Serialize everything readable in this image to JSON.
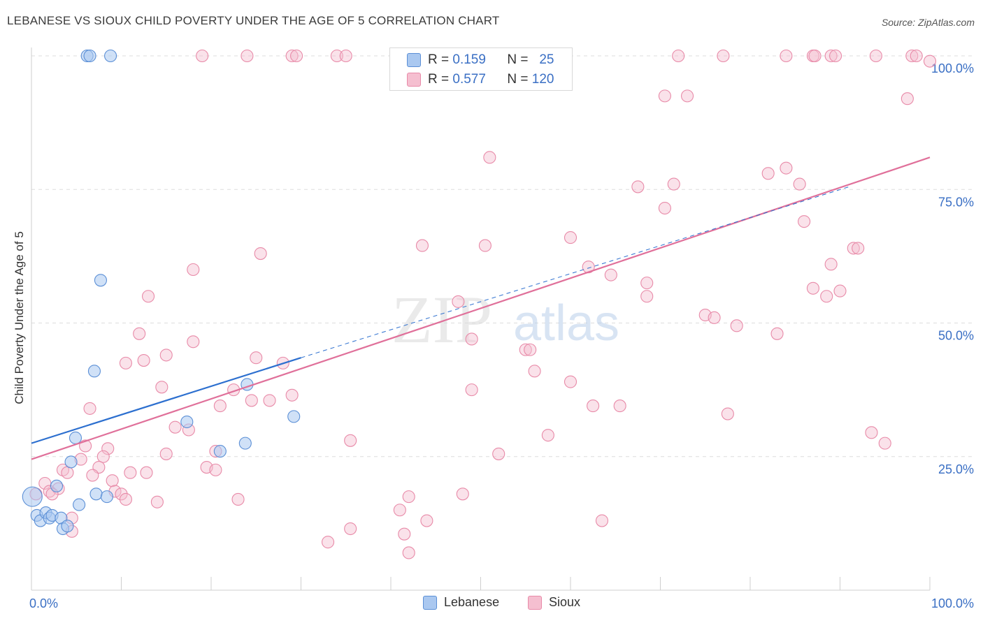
{
  "title": "LEBANESE VS SIOUX CHILD POVERTY UNDER THE AGE OF 5 CORRELATION CHART",
  "source": "Source: ZipAtlas.com",
  "watermark": {
    "zip": "ZIP",
    "atlas": "atlas"
  },
  "stats": {
    "lebanese": {
      "r_label": "R =",
      "r_value": "0.159",
      "n_label": "N =",
      "n_value": "25"
    },
    "sioux": {
      "r_label": "R =",
      "r_value": "0.577",
      "n_label": "N =",
      "n_value": "120"
    }
  },
  "legend": {
    "lebanese": "Lebanese",
    "sioux": "Sioux"
  },
  "colors": {
    "lebanese_fill": "#aac8f0",
    "lebanese_stroke": "#5b8fd6",
    "lebanese_line": "#2c6fcf",
    "sioux_fill": "#f5bfd0",
    "sioux_stroke": "#e88aa8",
    "sioux_line": "#e0709a",
    "axis_label": "#3a6fc4",
    "grid": "#dddddd"
  },
  "chart_data": {
    "type": "scatter",
    "title": "LEBANESE VS SIOUX CHILD POVERTY UNDER THE AGE OF 5 CORRELATION CHART",
    "xlabel": "",
    "ylabel": "Child Poverty Under the Age of 5",
    "xlim": [
      0,
      100
    ],
    "ylim": [
      0,
      100
    ],
    "x_tick_labels": [
      "0.0%",
      "100.0%"
    ],
    "y_tick_labels": [
      "25.0%",
      "50.0%",
      "75.0%",
      "100.0%"
    ],
    "y_ticks": [
      25,
      50,
      75,
      100
    ],
    "series": [
      {
        "name": "Lebanese",
        "r": 0.159,
        "n": 25,
        "trend": {
          "x": [
            0,
            30
          ],
          "y": [
            27.5,
            43.5
          ]
        },
        "trend_dashed": {
          "x": [
            30,
            91
          ],
          "y": [
            43.5,
            75.5
          ]
        },
        "points": [
          {
            "x": 6.2,
            "y": 100
          },
          {
            "x": 6.5,
            "y": 100
          },
          {
            "x": 8.8,
            "y": 100
          },
          {
            "x": 7.7,
            "y": 58
          },
          {
            "x": 7.0,
            "y": 41
          },
          {
            "x": 24.0,
            "y": 38.5
          },
          {
            "x": 17.3,
            "y": 31.5
          },
          {
            "x": 29.2,
            "y": 32.5
          },
          {
            "x": 4.9,
            "y": 28.5
          },
          {
            "x": 21.0,
            "y": 26
          },
          {
            "x": 23.8,
            "y": 27.5
          },
          {
            "x": 4.4,
            "y": 24
          },
          {
            "x": 2.8,
            "y": 19.5
          },
          {
            "x": 7.2,
            "y": 18
          },
          {
            "x": 8.4,
            "y": 17.5
          },
          {
            "x": 5.3,
            "y": 16
          },
          {
            "x": 0.1,
            "y": 17.5
          },
          {
            "x": 0.6,
            "y": 14
          },
          {
            "x": 1.0,
            "y": 13
          },
          {
            "x": 1.6,
            "y": 14.5
          },
          {
            "x": 2.0,
            "y": 13.5
          },
          {
            "x": 2.3,
            "y": 14
          },
          {
            "x": 3.3,
            "y": 13.5
          },
          {
            "x": 3.5,
            "y": 11.5
          },
          {
            "x": 4.0,
            "y": 12
          }
        ]
      },
      {
        "name": "Sioux",
        "r": 0.577,
        "n": 120,
        "trend": {
          "x": [
            0,
            100
          ],
          "y": [
            24.5,
            81
          ]
        },
        "points": [
          {
            "x": 19,
            "y": 100
          },
          {
            "x": 24,
            "y": 100
          },
          {
            "x": 29,
            "y": 100
          },
          {
            "x": 29.5,
            "y": 100
          },
          {
            "x": 34,
            "y": 100
          },
          {
            "x": 35,
            "y": 100
          },
          {
            "x": 46,
            "y": 100
          },
          {
            "x": 47,
            "y": 100
          },
          {
            "x": 72,
            "y": 100
          },
          {
            "x": 77,
            "y": 100
          },
          {
            "x": 84,
            "y": 100
          },
          {
            "x": 87,
            "y": 100
          },
          {
            "x": 87.2,
            "y": 100
          },
          {
            "x": 89,
            "y": 100
          },
          {
            "x": 89.5,
            "y": 100
          },
          {
            "x": 94,
            "y": 100
          },
          {
            "x": 98,
            "y": 100
          },
          {
            "x": 98.5,
            "y": 100
          },
          {
            "x": 100,
            "y": 99
          },
          {
            "x": 70.5,
            "y": 92.5
          },
          {
            "x": 73,
            "y": 92.5
          },
          {
            "x": 97.5,
            "y": 92
          },
          {
            "x": 51,
            "y": 81
          },
          {
            "x": 82,
            "y": 78
          },
          {
            "x": 84,
            "y": 79
          },
          {
            "x": 67.5,
            "y": 75.5
          },
          {
            "x": 71.5,
            "y": 76
          },
          {
            "x": 85.5,
            "y": 76
          },
          {
            "x": 70.5,
            "y": 71.5
          },
          {
            "x": 86,
            "y": 69
          },
          {
            "x": 60,
            "y": 66
          },
          {
            "x": 43.5,
            "y": 64.5
          },
          {
            "x": 50.5,
            "y": 64.5
          },
          {
            "x": 91.5,
            "y": 64
          },
          {
            "x": 92,
            "y": 64
          },
          {
            "x": 25.5,
            "y": 63
          },
          {
            "x": 18,
            "y": 60
          },
          {
            "x": 89,
            "y": 61
          },
          {
            "x": 62,
            "y": 60.5
          },
          {
            "x": 64.5,
            "y": 59
          },
          {
            "x": 68.5,
            "y": 57.5
          },
          {
            "x": 87,
            "y": 56.5
          },
          {
            "x": 90,
            "y": 56
          },
          {
            "x": 88.5,
            "y": 55
          },
          {
            "x": 13,
            "y": 55
          },
          {
            "x": 68.5,
            "y": 55
          },
          {
            "x": 47.5,
            "y": 54
          },
          {
            "x": 75,
            "y": 51.5
          },
          {
            "x": 76,
            "y": 51
          },
          {
            "x": 78.5,
            "y": 49.5
          },
          {
            "x": 83,
            "y": 48
          },
          {
            "x": 12,
            "y": 48
          },
          {
            "x": 49,
            "y": 47
          },
          {
            "x": 18,
            "y": 46.5
          },
          {
            "x": 55,
            "y": 45
          },
          {
            "x": 55.5,
            "y": 45
          },
          {
            "x": 15,
            "y": 44
          },
          {
            "x": 12.5,
            "y": 43
          },
          {
            "x": 25,
            "y": 43.5
          },
          {
            "x": 28,
            "y": 42.5
          },
          {
            "x": 10.5,
            "y": 42.5
          },
          {
            "x": 56,
            "y": 41
          },
          {
            "x": 60,
            "y": 39
          },
          {
            "x": 49,
            "y": 37.5
          },
          {
            "x": 14.5,
            "y": 38
          },
          {
            "x": 22.5,
            "y": 37.5
          },
          {
            "x": 29,
            "y": 36.5
          },
          {
            "x": 24.5,
            "y": 35.5
          },
          {
            "x": 26.5,
            "y": 35.5
          },
          {
            "x": 21,
            "y": 34.5
          },
          {
            "x": 62.5,
            "y": 34.5
          },
          {
            "x": 65.5,
            "y": 34.5
          },
          {
            "x": 6.5,
            "y": 34
          },
          {
            "x": 77.5,
            "y": 33
          },
          {
            "x": 16,
            "y": 30.5
          },
          {
            "x": 17.5,
            "y": 30
          },
          {
            "x": 57.5,
            "y": 29
          },
          {
            "x": 93.5,
            "y": 29.5
          },
          {
            "x": 95,
            "y": 27.5
          },
          {
            "x": 35.5,
            "y": 28
          },
          {
            "x": 6,
            "y": 27
          },
          {
            "x": 8.5,
            "y": 26.5
          },
          {
            "x": 15,
            "y": 25.5
          },
          {
            "x": 20.5,
            "y": 26
          },
          {
            "x": 52,
            "y": 25.5
          },
          {
            "x": 8,
            "y": 25
          },
          {
            "x": 5.5,
            "y": 24.5
          },
          {
            "x": 7.5,
            "y": 23
          },
          {
            "x": 19.5,
            "y": 23
          },
          {
            "x": 20.5,
            "y": 22.5
          },
          {
            "x": 3.5,
            "y": 22.5
          },
          {
            "x": 4,
            "y": 22
          },
          {
            "x": 11,
            "y": 22
          },
          {
            "x": 12.8,
            "y": 22
          },
          {
            "x": 6.8,
            "y": 21.5
          },
          {
            "x": 9,
            "y": 20.5
          },
          {
            "x": 1.5,
            "y": 20
          },
          {
            "x": 2,
            "y": 18.5
          },
          {
            "x": 0.5,
            "y": 18
          },
          {
            "x": 3,
            "y": 19
          },
          {
            "x": 9.3,
            "y": 18.5
          },
          {
            "x": 10,
            "y": 18
          },
          {
            "x": 2.3,
            "y": 18
          },
          {
            "x": 10.5,
            "y": 17
          },
          {
            "x": 14,
            "y": 16.5
          },
          {
            "x": 23,
            "y": 17
          },
          {
            "x": 42,
            "y": 17.5
          },
          {
            "x": 48,
            "y": 18
          },
          {
            "x": 41,
            "y": 15
          },
          {
            "x": 4.5,
            "y": 13.5
          },
          {
            "x": 44,
            "y": 13
          },
          {
            "x": 63.5,
            "y": 13
          },
          {
            "x": 35.5,
            "y": 11.5
          },
          {
            "x": 4.5,
            "y": 11
          },
          {
            "x": 41.5,
            "y": 10.5
          },
          {
            "x": 33,
            "y": 9
          },
          {
            "x": 42,
            "y": 7
          }
        ]
      }
    ]
  }
}
